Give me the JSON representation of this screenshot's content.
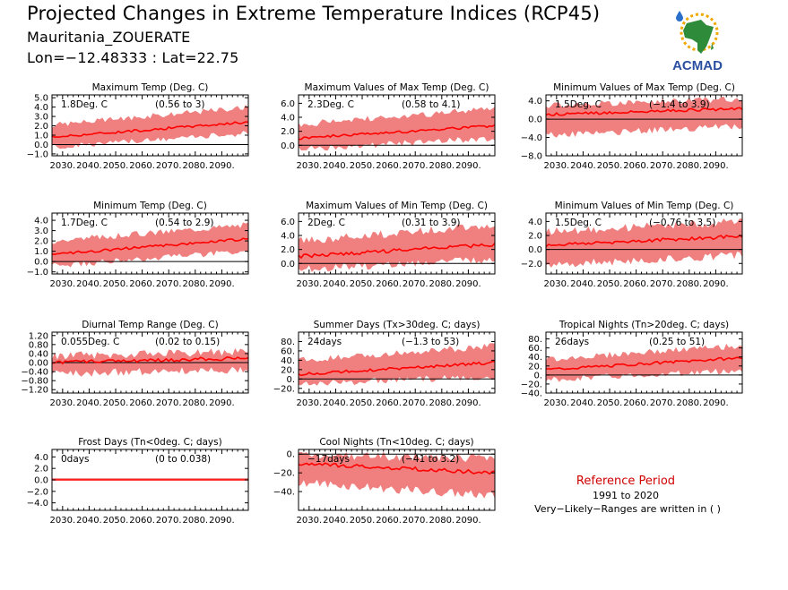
{
  "header": {
    "title": "Projected Changes in Extreme Temperature Indices (RCP45)",
    "subtitle": "Mauritania_ZOUERATE",
    "coords": "Lon=−12.48333 : Lat=22.75"
  },
  "logo": {
    "text": "ACMAD",
    "icon": "africa-map-with-sun-and-raindrop"
  },
  "reference": {
    "title": "Reference Period",
    "years": "1991 to 2020",
    "note": "Very−Likely−Ranges are written in ( )"
  },
  "colors": {
    "band": "#f08080",
    "line": "#ff0000",
    "zero": "#000000",
    "ref_text": "#d00000"
  },
  "chart_data": [
    {
      "type": "area",
      "title": "Maximum Temp (Deg. C)",
      "value": "1.8Deg. C",
      "range": "(0.56 to 3)",
      "x": [
        2026,
        2100
      ],
      "ylim": [
        -1.2,
        5.3
      ],
      "yticks": [
        -1,
        0,
        1,
        2,
        3,
        4,
        5
      ],
      "ytick_labels": [
        "−1.0",
        "0.0",
        "1.0",
        "2.0",
        "3.0",
        "4.0",
        "5.0"
      ],
      "median_start": 0.8,
      "median_end": 2.4,
      "band_lo_start": -0.3,
      "band_lo_end": 1.2,
      "band_hi_start": 2.1,
      "band_hi_end": 4.0,
      "noise": 0.25
    },
    {
      "type": "area",
      "title": "Maximum Values of Max Temp (Deg. C)",
      "value": "2.3Deg. C",
      "range": "(0.58 to 4.1)",
      "x": [
        2026,
        2100
      ],
      "ylim": [
        -1.5,
        7.2
      ],
      "yticks": [
        0,
        2,
        4,
        6
      ],
      "ytick_labels": [
        "0.0",
        "2.0",
        "4.0",
        "6.0"
      ],
      "median_start": 1.0,
      "median_end": 2.8,
      "band_lo_start": -0.5,
      "band_lo_end": 1.0,
      "band_hi_start": 3.0,
      "band_hi_end": 5.2,
      "noise": 0.4
    },
    {
      "type": "area",
      "title": "Minimum Values of Max Temp (Deg. C)",
      "value": "1.5Deg. C",
      "range": "(−1.4 to 3.9)",
      "x": [
        2026,
        2100
      ],
      "ylim": [
        -8,
        5.3
      ],
      "yticks": [
        -8,
        -4,
        0,
        4
      ],
      "ytick_labels": [
        "−8.0",
        "−4.0",
        "0.0",
        "4.0"
      ],
      "median_start": 1.0,
      "median_end": 2.3,
      "band_lo_start": -3.5,
      "band_lo_end": -1.5,
      "band_hi_start": 3.0,
      "band_hi_end": 4.5,
      "noise": 0.6
    },
    {
      "type": "area",
      "title": "Minimum Temp (Deg. C)",
      "value": "1.7Deg. C",
      "range": "(0.54 to 2.9)",
      "x": [
        2026,
        2100
      ],
      "ylim": [
        -1.2,
        4.7
      ],
      "yticks": [
        -1,
        0,
        1,
        2,
        3,
        4
      ],
      "ytick_labels": [
        "−1.0",
        "0.0",
        "1.0",
        "2.0",
        "3.0",
        "4.0"
      ],
      "median_start": 0.7,
      "median_end": 2.2,
      "band_lo_start": -0.4,
      "band_lo_end": 1.0,
      "band_hi_start": 2.0,
      "band_hi_end": 3.6,
      "noise": 0.25
    },
    {
      "type": "area",
      "title": "Maximum Values of Min Temp (Deg. C)",
      "value": "2Deg. C",
      "range": "(0.31 to 3.9)",
      "x": [
        2026,
        2100
      ],
      "ylim": [
        -1.5,
        7.2
      ],
      "yticks": [
        0,
        2,
        4,
        6
      ],
      "ytick_labels": [
        "0.0",
        "2.0",
        "4.0",
        "6.0"
      ],
      "median_start": 1.0,
      "median_end": 2.7,
      "band_lo_start": -0.8,
      "band_lo_end": 0.6,
      "band_hi_start": 3.2,
      "band_hi_end": 5.5,
      "noise": 0.5
    },
    {
      "type": "area",
      "title": "Minimum Values of Min Temp (Deg. C)",
      "value": "1.5Deg. C",
      "range": "(−0.76 to 3.5)",
      "x": [
        2026,
        2100
      ],
      "ylim": [
        -3.5,
        5.2
      ],
      "yticks": [
        -2,
        0,
        2,
        4
      ],
      "ytick_labels": [
        "−2.0",
        "0.0",
        "2.0",
        "4.0"
      ],
      "median_start": 0.6,
      "median_end": 1.9,
      "band_lo_start": -2.2,
      "band_lo_end": -0.8,
      "band_hi_start": 2.5,
      "band_hi_end": 4.0,
      "noise": 0.5
    },
    {
      "type": "area",
      "title": "Diurnal Temp Range (Deg. C)",
      "value": "0.055Deg. C",
      "range": "(0.02 to 0.15)",
      "x": [
        2026,
        2100
      ],
      "ylim": [
        -1.35,
        1.35
      ],
      "yticks": [
        -1.2,
        -0.8,
        -0.4,
        0,
        0.4,
        0.8,
        1.2
      ],
      "ytick_labels": [
        "−1.20",
        "−0.80",
        "−0.40",
        "0.00",
        "0.40",
        "0.80",
        "1.20"
      ],
      "median_start": 0.0,
      "median_end": 0.2,
      "band_lo_start": -0.5,
      "band_lo_end": -0.3,
      "band_hi_start": 0.3,
      "band_hi_end": 0.5,
      "noise": 0.15
    },
    {
      "type": "area",
      "title": "Summer Days (Tx>30deg. C; days)",
      "value": "24days",
      "range": "(−1.3 to 53)",
      "x": [
        2026,
        2100
      ],
      "ylim": [
        -30,
        100
      ],
      "yticks": [
        -20,
        0,
        20,
        40,
        60,
        80
      ],
      "ytick_labels": [
        "−20.",
        "0.",
        "20.",
        "40.",
        "60.",
        "80."
      ],
      "median_start": 10,
      "median_end": 35,
      "band_lo_start": -10,
      "band_lo_end": 5,
      "band_hi_start": 40,
      "band_hi_end": 70,
      "noise": 6
    },
    {
      "type": "area",
      "title": "Tropical Nights (Tn>20deg. C; days)",
      "value": "26days",
      "range": "(0.25 to 51)",
      "x": [
        2026,
        2100
      ],
      "ylim": [
        -40,
        95
      ],
      "yticks": [
        -40,
        -20,
        0,
        20,
        40,
        60,
        80
      ],
      "ytick_labels": [
        "−40.",
        "−20.",
        "0.",
        "20.",
        "40.",
        "60.",
        "80."
      ],
      "median_start": 12,
      "median_end": 38,
      "band_lo_start": -10,
      "band_lo_end": 10,
      "band_hi_start": 35,
      "band_hi_end": 65,
      "noise": 6
    },
    {
      "type": "area",
      "title": "Frost Days (Tn<0deg. C; days)",
      "value": "0days",
      "range": "(0 to 0.038)",
      "x": [
        2026,
        2100
      ],
      "ylim": [
        -5.3,
        5.3
      ],
      "yticks": [
        -4,
        -2,
        0,
        2,
        4
      ],
      "ytick_labels": [
        "−4.0",
        "−2.0",
        "0.0",
        "2.0",
        "4.0"
      ],
      "median_start": 0.0,
      "median_end": 0.0,
      "band_lo_start": 0.0,
      "band_lo_end": 0.0,
      "band_hi_start": 0.3,
      "band_hi_end": 0.3,
      "noise": 0
    },
    {
      "type": "area",
      "title": "Cool Nights (Tn<10deg. C; days)",
      "value": "−17days",
      "range": "(−41 to 3.2)",
      "x": [
        2026,
        2100
      ],
      "ylim": [
        -60,
        5
      ],
      "yticks": [
        -40,
        -20,
        0
      ],
      "ytick_labels": [
        "−40.",
        "−20.",
        "0."
      ],
      "median_start": -10,
      "median_end": -20,
      "band_lo_start": -30,
      "band_lo_end": -45,
      "band_hi_start": 0,
      "band_hi_end": -5,
      "noise": 4
    }
  ],
  "xaxis": {
    "ticks": [
      2030,
      2040,
      2050,
      2060,
      2070,
      2080,
      2090
    ],
    "tick_labels": [
      "2030.",
      "2040.",
      "2050.",
      "2060.",
      "2070.",
      "2080.",
      "2090."
    ]
  }
}
